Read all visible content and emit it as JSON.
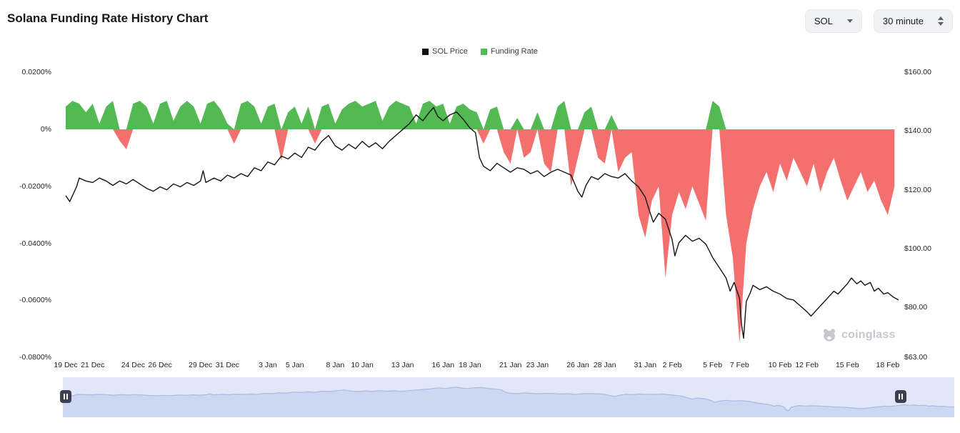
{
  "header": {
    "title": "Solana Funding Rate History Chart",
    "symbol_select": {
      "value": "SOL"
    },
    "interval_select": {
      "value": "30 minute"
    }
  },
  "legend_items": [
    {
      "label": "SOL Price",
      "color": "#111111"
    },
    {
      "label": "Funding Rate",
      "color": "#53b953"
    }
  ],
  "watermark": {
    "text": "coinglass"
  },
  "chart_data": {
    "type": "mixed",
    "title": "Solana Funding Rate History Chart",
    "subtype": "price line (right axis) + funding rate area (left axis)",
    "grid": "off",
    "legend_position": "top-center",
    "x_axis": {
      "tick_labels": [
        "19 Dec",
        "21 Dec",
        "24 Dec",
        "26 Dec",
        "29 Dec",
        "31 Dec",
        "3 Jan",
        "5 Jan",
        "8 Jan",
        "10 Jan",
        "13 Jan",
        "16 Jan",
        "18 Jan",
        "21 Jan",
        "23 Jan",
        "26 Jan",
        "28 Jan",
        "31 Jan",
        "2 Feb",
        "5 Feb",
        "7 Feb",
        "10 Feb",
        "12 Feb",
        "15 Feb",
        "18 Feb"
      ],
      "tick_days": [
        0,
        2,
        5,
        7,
        10,
        12,
        15,
        17,
        20,
        22,
        25,
        28,
        30,
        33,
        35,
        38,
        40,
        43,
        45,
        48,
        50,
        53,
        55,
        58,
        61
      ],
      "total_days": 61.8
    },
    "funding_axis": {
      "side": "left",
      "ticks": [
        "0.0200%",
        "0%",
        "-0.0200%",
        "-0.0400%",
        "-0.0600%",
        "-0.0800%"
      ],
      "tick_values": [
        0.02,
        0,
        -0.02,
        -0.04,
        -0.06,
        -0.08
      ],
      "range": [
        -0.0815,
        0.0215
      ]
    },
    "price_axis": {
      "side": "right",
      "ticks": [
        "$160.00",
        "$140.00",
        "$120.00",
        "$100.00",
        "$80.00",
        "$63.00"
      ],
      "tick_values": [
        160,
        140,
        120,
        100,
        80,
        63
      ],
      "range": [
        63,
        161.5
      ]
    },
    "price_series": {
      "name": "SOL Price",
      "color": "#141414",
      "points": [
        [
          0,
          118
        ],
        [
          0.3,
          116
        ],
        [
          0.8,
          121
        ],
        [
          1,
          124
        ],
        [
          1.5,
          123
        ],
        [
          2,
          122.5
        ],
        [
          2.5,
          124
        ],
        [
          3,
          123
        ],
        [
          3.5,
          121.5
        ],
        [
          4,
          123
        ],
        [
          4.5,
          122
        ],
        [
          5,
          123.5
        ],
        [
          5.5,
          122
        ],
        [
          6,
          120.5
        ],
        [
          6.5,
          119.5
        ],
        [
          7,
          121
        ],
        [
          7.5,
          120
        ],
        [
          8,
          122
        ],
        [
          8.5,
          121
        ],
        [
          9,
          122.5
        ],
        [
          9.5,
          121.5
        ],
        [
          10,
          123
        ],
        [
          10.2,
          126.5
        ],
        [
          10.4,
          122.5
        ],
        [
          11,
          124
        ],
        [
          11.5,
          123
        ],
        [
          12,
          125
        ],
        [
          12.5,
          124
        ],
        [
          13,
          125.5
        ],
        [
          13.5,
          124.5
        ],
        [
          14,
          127.5
        ],
        [
          14.5,
          126.5
        ],
        [
          15,
          129.5
        ],
        [
          15.5,
          128.5
        ],
        [
          16,
          131.5
        ],
        [
          16.5,
          130.5
        ],
        [
          17,
          132.5
        ],
        [
          17.5,
          131
        ],
        [
          18,
          134.5
        ],
        [
          18.5,
          133.5
        ],
        [
          19,
          136.5
        ],
        [
          19.5,
          138.5
        ],
        [
          20,
          135
        ],
        [
          20.5,
          133.5
        ],
        [
          21,
          135.5
        ],
        [
          21.5,
          134
        ],
        [
          22,
          136.5
        ],
        [
          22.5,
          134.5
        ],
        [
          23,
          136
        ],
        [
          23.5,
          134
        ],
        [
          24,
          136.5
        ],
        [
          24.5,
          138.5
        ],
        [
          25,
          140.5
        ],
        [
          25.5,
          142.5
        ],
        [
          26,
          145.5
        ],
        [
          26.5,
          143.5
        ],
        [
          27,
          146.5
        ],
        [
          27.3,
          148
        ],
        [
          27.6,
          145
        ],
        [
          28,
          143.5
        ],
        [
          28.5,
          145.5
        ],
        [
          29,
          146.5
        ],
        [
          29.5,
          144
        ],
        [
          30,
          141
        ],
        [
          30.4,
          139.5
        ],
        [
          30.7,
          131
        ],
        [
          31,
          128
        ],
        [
          31.5,
          126.5
        ],
        [
          32,
          129
        ],
        [
          32.5,
          127.5
        ],
        [
          33,
          126
        ],
        [
          33.5,
          127.5
        ],
        [
          34,
          127
        ],
        [
          34.5,
          125.5
        ],
        [
          35,
          126.5
        ],
        [
          35.5,
          124.5
        ],
        [
          36,
          126
        ],
        [
          36.5,
          127
        ],
        [
          37,
          126
        ],
        [
          37.5,
          125
        ],
        [
          38,
          119.5
        ],
        [
          38.3,
          117.5
        ],
        [
          38.6,
          121.5
        ],
        [
          39,
          124.5
        ],
        [
          39.5,
          123.5
        ],
        [
          40,
          125.5
        ],
        [
          40.5,
          124.5
        ],
        [
          41,
          124
        ],
        [
          41.5,
          125.5
        ],
        [
          42,
          123
        ],
        [
          42.5,
          121
        ],
        [
          43,
          117.5
        ],
        [
          43.3,
          113
        ],
        [
          43.6,
          109
        ],
        [
          44,
          112
        ],
        [
          44.5,
          110
        ],
        [
          45,
          103
        ],
        [
          45.2,
          97.5
        ],
        [
          45.5,
          102
        ],
        [
          46,
          104.5
        ],
        [
          46.5,
          102.5
        ],
        [
          47,
          103.5
        ],
        [
          47.5,
          101.5
        ],
        [
          48,
          97
        ],
        [
          48.5,
          93.5
        ],
        [
          49,
          90
        ],
        [
          49.3,
          85.5
        ],
        [
          49.6,
          88.5
        ],
        [
          50,
          83
        ],
        [
          50.15,
          74
        ],
        [
          50.3,
          69.5
        ],
        [
          50.5,
          82
        ],
        [
          50.8,
          85
        ],
        [
          51,
          87.5
        ],
        [
          51.5,
          86
        ],
        [
          52,
          87
        ],
        [
          52.5,
          85.5
        ],
        [
          53,
          84.5
        ],
        [
          53.5,
          83
        ],
        [
          54,
          82.5
        ],
        [
          54.5,
          80.5
        ],
        [
          55,
          78.5
        ],
        [
          55.3,
          77
        ],
        [
          55.7,
          79
        ],
        [
          56,
          80.5
        ],
        [
          56.5,
          83
        ],
        [
          57,
          85.5
        ],
        [
          57.3,
          84.5
        ],
        [
          57.7,
          86.5
        ],
        [
          58,
          88
        ],
        [
          58.3,
          90
        ],
        [
          58.7,
          88
        ],
        [
          59,
          89
        ],
        [
          59.3,
          87.5
        ],
        [
          59.7,
          88.5
        ],
        [
          60,
          85.5
        ],
        [
          60.3,
          86.5
        ],
        [
          60.7,
          84.5
        ],
        [
          61,
          85
        ],
        [
          61.4,
          83.5
        ],
        [
          61.8,
          82.5
        ]
      ]
    },
    "funding_series": {
      "name": "Funding Rate",
      "unit": "percent",
      "pos_color": "#53b953",
      "neg_color": "#f3706e",
      "start_day": 0,
      "step_days": 0.5,
      "values": [
        0.008,
        0.01,
        0.009,
        0.006,
        0.009,
        0.002,
        0.008,
        0.01,
        -0.004,
        -0.007,
        0.009,
        0.01,
        0.008,
        0.002,
        0.009,
        0.01,
        0.003,
        0.008,
        0.01,
        0.008,
        0.002,
        0.009,
        0.01,
        0.007,
        0.002,
        -0.005,
        0.009,
        0.01,
        0.008,
        0.002,
        0.008,
        0.009,
        -0.011,
        0.006,
        0.008,
        0.002,
        0.008,
        -0.005,
        0.008,
        0.009,
        0.002,
        0.007,
        0.009,
        0.01,
        0.008,
        0.009,
        0.01,
        0.003,
        0.008,
        0.01,
        0.009,
        0.008,
        0.002,
        0.009,
        0.01,
        0.008,
        0.009,
        0.002,
        0.008,
        0.009,
        0.007,
        0.006,
        -0.005,
        0.007,
        0.008,
        -0.008,
        -0.012,
        0.004,
        -0.01,
        -0.008,
        0.006,
        -0.012,
        -0.015,
        0.008,
        0.01,
        -0.02,
        -0.01,
        0.006,
        0.008,
        -0.01,
        -0.012,
        0.005,
        -0.015,
        -0.01,
        -0.008,
        -0.03,
        -0.038,
        -0.025,
        -0.02,
        -0.052,
        -0.03,
        -0.022,
        -0.028,
        -0.02,
        -0.026,
        -0.032,
        0.01,
        0.008,
        -0.03,
        -0.045,
        -0.075,
        -0.04,
        -0.028,
        -0.02,
        -0.015,
        -0.022,
        -0.012,
        -0.018,
        -0.01,
        -0.015,
        -0.02,
        -0.012,
        -0.022,
        -0.015,
        -0.01,
        -0.018,
        -0.025,
        -0.02,
        -0.015,
        -0.022,
        -0.018,
        -0.025,
        -0.03,
        -0.02
      ]
    },
    "navigator": {
      "background": "#e1e7f9",
      "area_color": "#ccd7f2",
      "line_color": "#a9bbe4",
      "handle_color": "#3c414d"
    }
  }
}
